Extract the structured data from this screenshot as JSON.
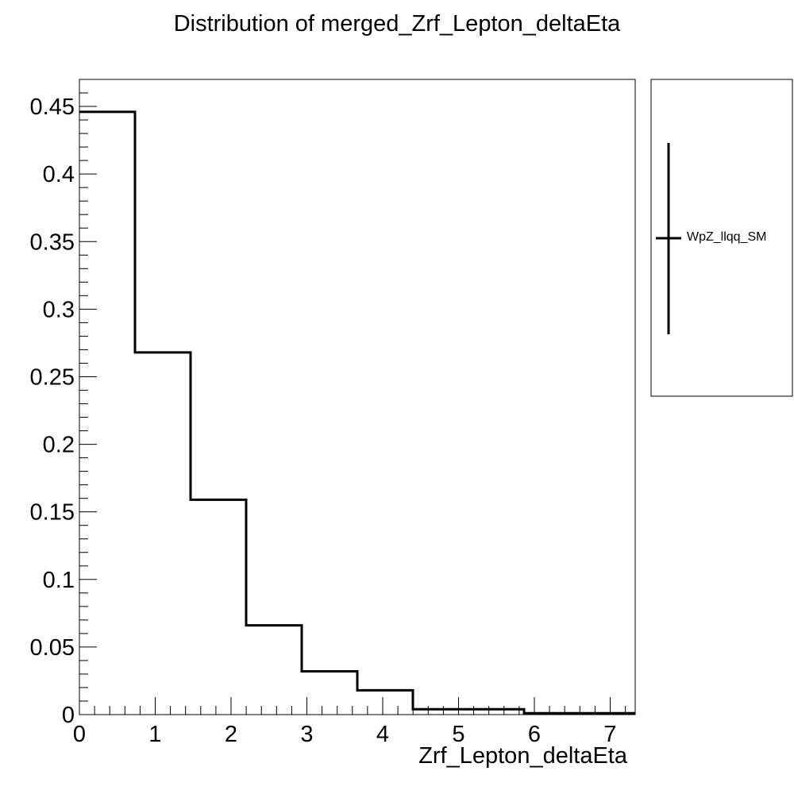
{
  "chart_data": {
    "type": "histogram",
    "title": "Distribution of merged_Zrf_Lepton_deltaEta",
    "xlabel": "Zrf_Lepton_deltaEta",
    "ylabel": "",
    "xlim": [
      0,
      7.33
    ],
    "ylim": [
      0,
      0.47
    ],
    "x_ticks": [
      "0",
      "1",
      "2",
      "3",
      "4",
      "5",
      "6",
      "7"
    ],
    "y_ticks": [
      "0",
      "0.05",
      "0.1",
      "0.15",
      "0.2",
      "0.25",
      "0.3",
      "0.35",
      "0.4",
      "0.45"
    ],
    "bin_edges": [
      0,
      0.733,
      1.466,
      2.199,
      2.932,
      3.665,
      4.398,
      5.131,
      5.864,
      6.597,
      7.33
    ],
    "series": [
      {
        "name": "WpZ_llqq_SM",
        "values": [
          0.446,
          0.268,
          0.159,
          0.066,
          0.032,
          0.018,
          0.004,
          0.004,
          0.001,
          0.001
        ]
      }
    ],
    "legend_position": "right",
    "grid": false
  }
}
